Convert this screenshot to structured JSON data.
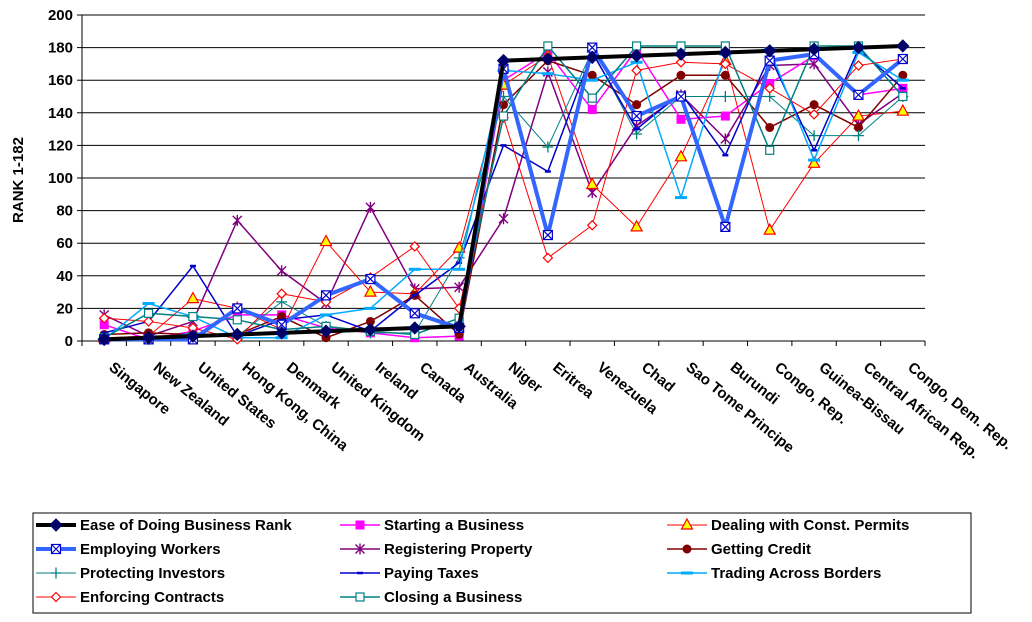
{
  "chart_data": {
    "type": "line",
    "title": "",
    "xlabel": "",
    "ylabel": "RANK 1-182",
    "ylim": [
      0,
      200
    ],
    "yticks": [
      0,
      20,
      40,
      60,
      80,
      100,
      120,
      140,
      160,
      180,
      200
    ],
    "grid": true,
    "legend_position": "bottom",
    "categories": [
      "Singapore",
      "New Zealand",
      "United States",
      "Hong Kong, China",
      "Denmark",
      "United Kingdom",
      "Ireland",
      "Canada",
      "Australia",
      "Niger",
      "Eritrea",
      "Venezuela",
      "Chad",
      "Sao Tome Principe",
      "Burundi",
      "Congo, Rep.",
      "Guinea-Bissau",
      "Central African Rep.",
      "Congo, Dem. Rep."
    ],
    "series": [
      {
        "name": "Ease of Doing Business Rank",
        "color": "#000000",
        "marker": "diamond",
        "width": 4,
        "values": [
          1,
          2,
          3,
          4,
          5,
          6,
          7,
          8,
          9,
          172,
          173,
          174,
          175,
          176,
          177,
          178,
          179,
          180,
          181
        ]
      },
      {
        "name": "Starting a Business",
        "color": "#ff00ff",
        "marker": "square",
        "width": 1.5,
        "values": [
          10,
          1,
          6,
          16,
          16,
          8,
          5,
          2,
          3,
          160,
          177,
          142,
          179,
          136,
          138,
          158,
          175,
          151,
          155
        ]
      },
      {
        "name": "Dealing with Const. Permits",
        "color": "#ff0000",
        "marker": "triangle",
        "width": 1,
        "values": [
          2,
          3,
          26,
          20,
          7,
          61,
          30,
          29,
          57,
          157,
          175,
          96,
          70,
          113,
          172,
          68,
          109,
          138,
          141
        ]
      },
      {
        "name": "Employing Workers",
        "color": "#3366ff",
        "marker": "xbox",
        "width": 4,
        "values": [
          1,
          1,
          1,
          20,
          10,
          28,
          38,
          17,
          8,
          167,
          65,
          180,
          138,
          150,
          70,
          172,
          176,
          151,
          173
        ]
      },
      {
        "name": "Registering Property",
        "color": "#800080",
        "marker": "star",
        "width": 1.5,
        "values": [
          16,
          3,
          12,
          74,
          43,
          23,
          82,
          32,
          33,
          75,
          165,
          91,
          132,
          151,
          124,
          169,
          170,
          133,
          152
        ]
      },
      {
        "name": "Getting Credit",
        "color": "#800000",
        "marker": "circle",
        "width": 1.5,
        "values": [
          4,
          5,
          4,
          4,
          15,
          2,
          12,
          28,
          4,
          145,
          172,
          163,
          145,
          163,
          163,
          131,
          145,
          131,
          163
        ]
      },
      {
        "name": "Protecting Investors",
        "color": "#008080",
        "marker": "plus",
        "width": 1,
        "values": [
          2,
          1,
          5,
          3,
          24,
          9,
          5,
          5,
          51,
          150,
          119,
          178,
          127,
          150,
          150,
          150,
          126,
          126,
          150
        ]
      },
      {
        "name": "Paying Taxes",
        "color": "#0000cc",
        "marker": "dash",
        "width": 1.5,
        "values": [
          5,
          12,
          46,
          3,
          13,
          16,
          6,
          28,
          48,
          120,
          104,
          177,
          130,
          152,
          114,
          175,
          117,
          179,
          155
        ]
      },
      {
        "name": "Trading Across Borders",
        "color": "#00aaff",
        "marker": "bar",
        "width": 1.5,
        "values": [
          1,
          23,
          15,
          2,
          2,
          16,
          20,
          44,
          44,
          166,
          164,
          160,
          171,
          88,
          176,
          179,
          111,
          177,
          160
        ]
      },
      {
        "name": "Enforcing Contracts",
        "color": "#ff0000",
        "marker": "odiamond",
        "width": 1,
        "values": [
          14,
          12,
          8,
          1,
          29,
          24,
          39,
          58,
          20,
          137,
          51,
          71,
          166,
          171,
          170,
          155,
          139,
          169,
          173
        ]
      },
      {
        "name": "Closing a Business",
        "color": "#008080",
        "marker": "osquare",
        "width": 1.5,
        "values": [
          2,
          17,
          15,
          13,
          7,
          9,
          6,
          4,
          14,
          138,
          181,
          149,
          181,
          181,
          181,
          117,
          181,
          181,
          150
        ]
      }
    ]
  }
}
